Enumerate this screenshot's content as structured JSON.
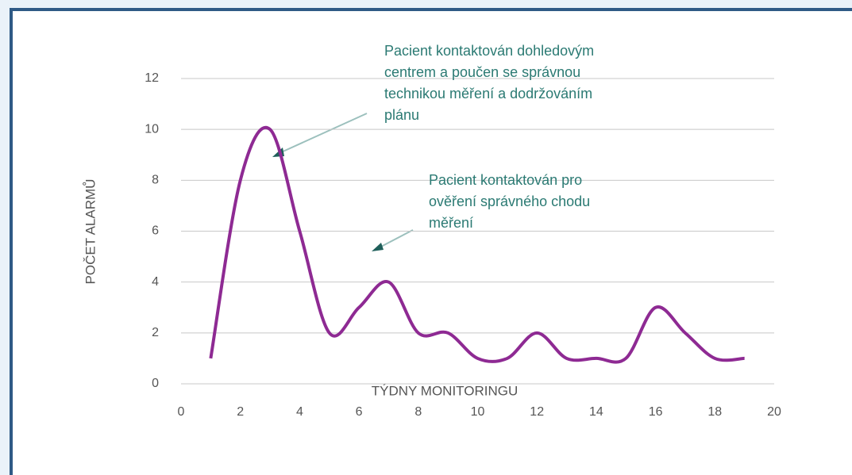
{
  "chart_data": {
    "type": "line",
    "xlabel": "TÝDNY MONITORINGU",
    "ylabel": "POČET ALARMŮ",
    "x": [
      1,
      2,
      3,
      4,
      5,
      6,
      7,
      8,
      9,
      10,
      11,
      12,
      13,
      14,
      15,
      16,
      17,
      18,
      19
    ],
    "series": [
      {
        "color": "#8e2a93",
        "values": [
          1,
          8,
          10,
          6,
          2,
          3,
          4,
          2,
          2,
          1,
          1,
          2,
          1,
          1,
          1,
          3,
          2,
          1,
          1
        ]
      }
    ],
    "xlim": [
      0,
      20
    ],
    "xticks": [
      0,
      2,
      4,
      6,
      8,
      10,
      12,
      14,
      16,
      18,
      20
    ],
    "ylim": [
      0,
      12
    ],
    "yticks": [
      0,
      2,
      4,
      6,
      8,
      10,
      12
    ],
    "grid": true,
    "annotations": [
      {
        "lines": [
          "Pacient kontaktován dohledovým",
          "centrem a poučen se správnou",
          "technikou měření a dodržováním",
          "plánu"
        ]
      },
      {
        "lines": [
          "Pacient kontaktován pro",
          "ověření správného chodu",
          "měření"
        ]
      }
    ]
  }
}
